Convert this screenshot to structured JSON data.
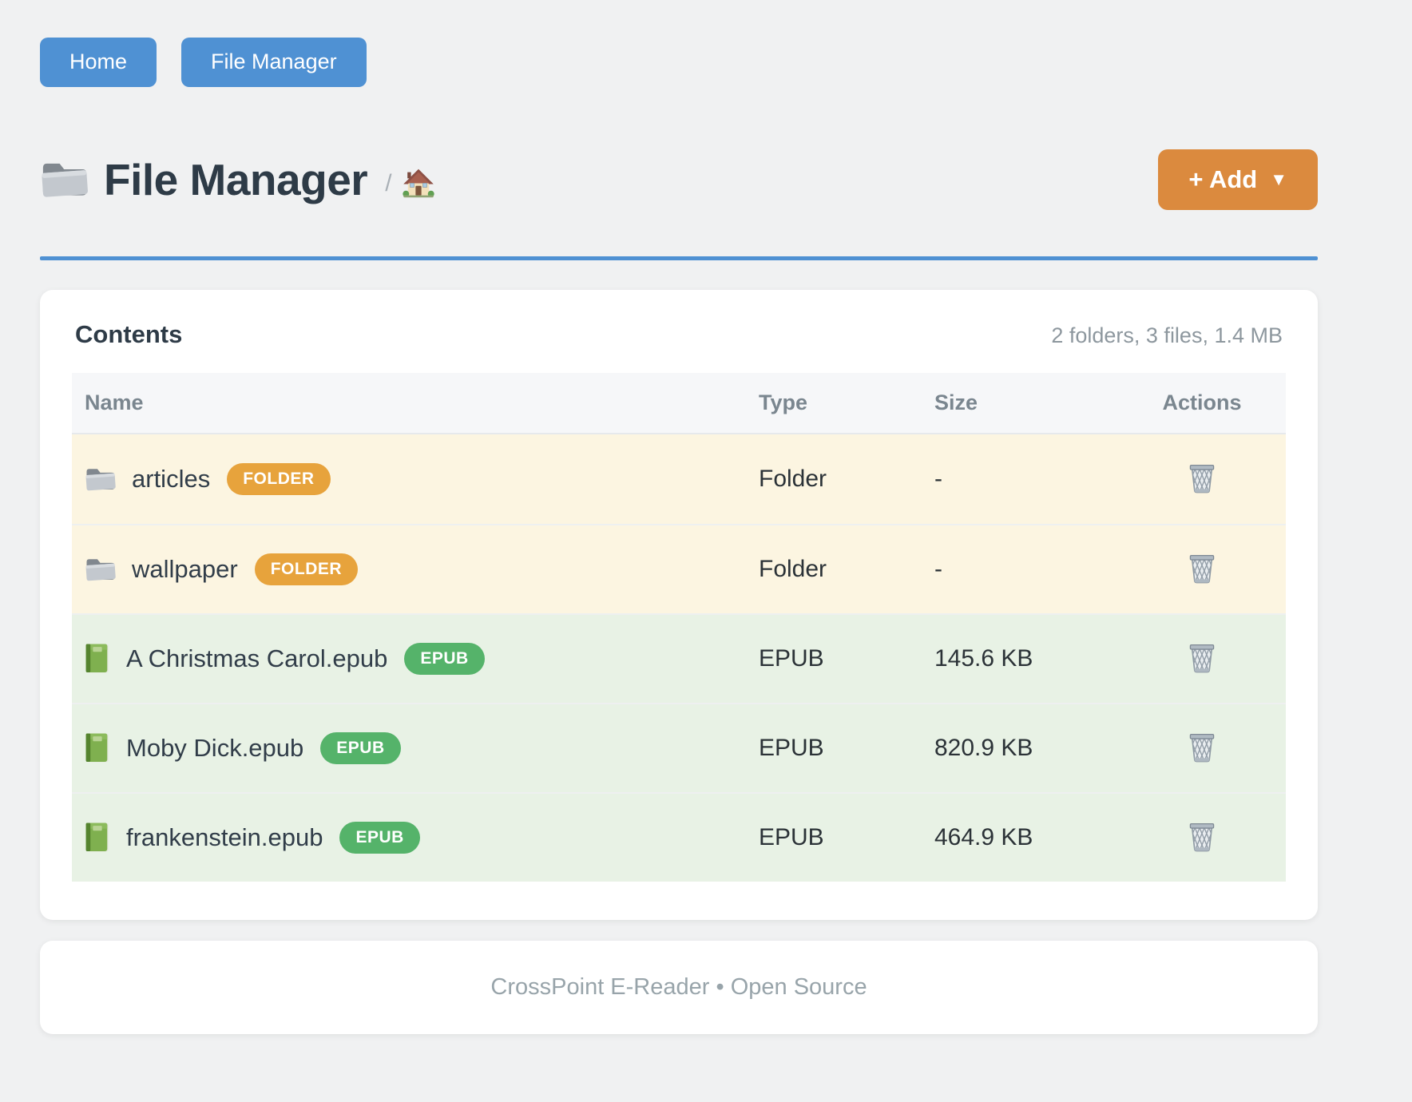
{
  "nav": {
    "buttons": [
      {
        "label": "Home"
      },
      {
        "label": "File Manager"
      }
    ]
  },
  "header": {
    "title": "File Manager",
    "title_icon": "folder-icon",
    "breadcrumb_separator": "/",
    "breadcrumb_home_icon": "house-icon",
    "add_button": {
      "label": "+ Add",
      "caret": "▼"
    }
  },
  "contents": {
    "title": "Contents",
    "summary": "2 folders, 3 files, 1.4 MB",
    "columns": [
      "Name",
      "Type",
      "Size",
      "Actions"
    ],
    "rows": [
      {
        "name": "articles",
        "kind": "folder",
        "icon": "folder-icon",
        "badge": "FOLDER",
        "type": "Folder",
        "size": "-",
        "action_icon": "trash-icon"
      },
      {
        "name": "wallpaper",
        "kind": "folder",
        "icon": "folder-icon",
        "badge": "FOLDER",
        "type": "Folder",
        "size": "-",
        "action_icon": "trash-icon"
      },
      {
        "name": "A Christmas Carol.epub",
        "kind": "epub",
        "icon": "book-icon",
        "badge": "EPUB",
        "type": "EPUB",
        "size": "145.6 KB",
        "action_icon": "trash-icon"
      },
      {
        "name": "Moby Dick.epub",
        "kind": "epub",
        "icon": "book-icon",
        "badge": "EPUB",
        "type": "EPUB",
        "size": "820.9 KB",
        "action_icon": "trash-icon"
      },
      {
        "name": "frankenstein.epub",
        "kind": "epub",
        "icon": "book-icon",
        "badge": "EPUB",
        "type": "EPUB",
        "size": "464.9 KB",
        "action_icon": "trash-icon"
      }
    ]
  },
  "footer": {
    "text": "CrossPoint E-Reader • Open Source"
  },
  "colors": {
    "page_background": "#f0f1f2",
    "nav_button_blue": "#4f91d3",
    "divider_blue": "#4f91d3",
    "add_button_orange": "#db8a3e",
    "folder_badge_orange": "#e7a33c",
    "epub_badge_green": "#55b36a",
    "folder_row_background": "#fcf5e1",
    "epub_row_background": "#e8f2e5",
    "table_header_background": "#f6f7f9",
    "title_text": "#2e3b47",
    "muted_text": "#8d979e"
  }
}
